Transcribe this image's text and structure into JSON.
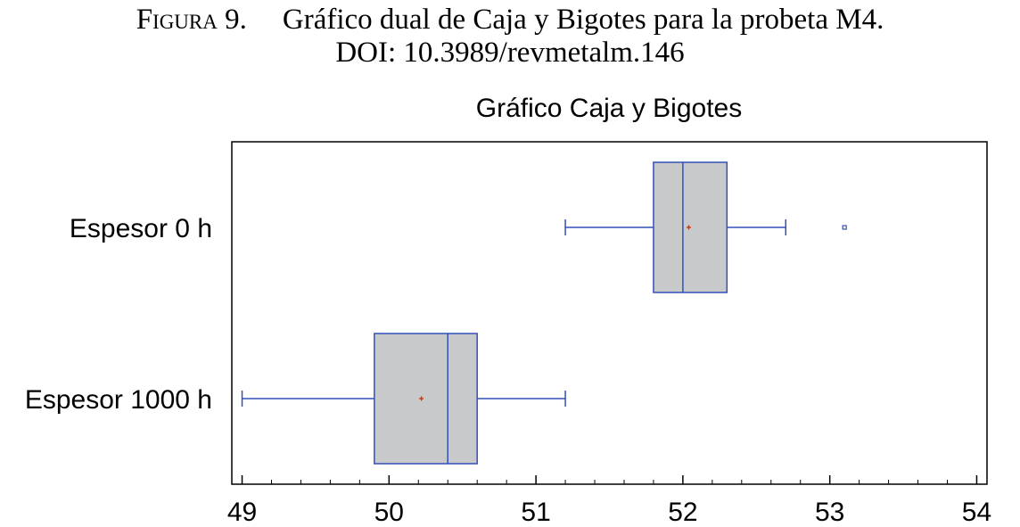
{
  "caption": {
    "label": "Figura 9.",
    "text": "Gráfico dual de Caja y Bigotes para la probeta M4.",
    "doi": "DOI: 10.3989/revmetalm.146"
  },
  "chart_data": {
    "type": "box",
    "orientation": "horizontal",
    "title": "Gráfico Caja y Bigotes",
    "xlabel": "",
    "ylabel": "",
    "xlim": [
      48.93,
      54.07
    ],
    "x_ticks": [
      49,
      50,
      51,
      52,
      53,
      54
    ],
    "x_tick_labels": [
      "49",
      "50",
      "51",
      "52",
      "53",
      "54"
    ],
    "grid": false,
    "legend": "none",
    "colors": {
      "box_fill": "#c8c9cb",
      "box_stroke": "#3350b8",
      "mean_marker": "#b03a1a",
      "frame": "#000000"
    },
    "series": [
      {
        "name": "Espesor 0 h",
        "whisker_low": 51.2,
        "q1": 51.8,
        "median": 52.0,
        "q3": 52.3,
        "whisker_high": 52.7,
        "mean": 52.04,
        "outliers": [
          53.1
        ]
      },
      {
        "name": "Espesor 1000 h",
        "whisker_low": 49.0,
        "q1": 49.9,
        "median": 50.4,
        "q3": 50.6,
        "whisker_high": 51.2,
        "mean": 50.22,
        "outliers": []
      }
    ]
  }
}
